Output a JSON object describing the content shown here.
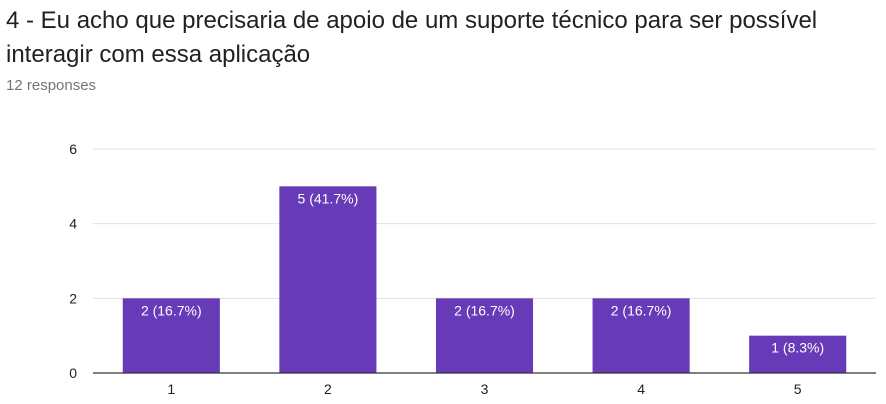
{
  "question": {
    "title": "4 - Eu acho que precisaria de apoio de um suporte técnico para ser possível interagir com essa aplicação",
    "responses": "12 responses"
  },
  "colors": {
    "bar": "#673ab7",
    "grid": "#e0e0e0",
    "axis": "#333333",
    "bar_label": "#ffffff",
    "tick_label": "#222222"
  },
  "chart_data": {
    "type": "bar",
    "title": "",
    "xlabel": "",
    "ylabel": "",
    "categories": [
      "1",
      "2",
      "3",
      "4",
      "5"
    ],
    "values": [
      2,
      5,
      2,
      2,
      1
    ],
    "data_labels": [
      "2 (16.7%)",
      "5 (41.7%)",
      "2 (16.7%)",
      "2 (16.7%)",
      "1 (8.3%)"
    ],
    "ylim": [
      0,
      6
    ],
    "yticks": [
      0,
      2,
      4,
      6
    ],
    "grid": true,
    "legend": "none"
  }
}
